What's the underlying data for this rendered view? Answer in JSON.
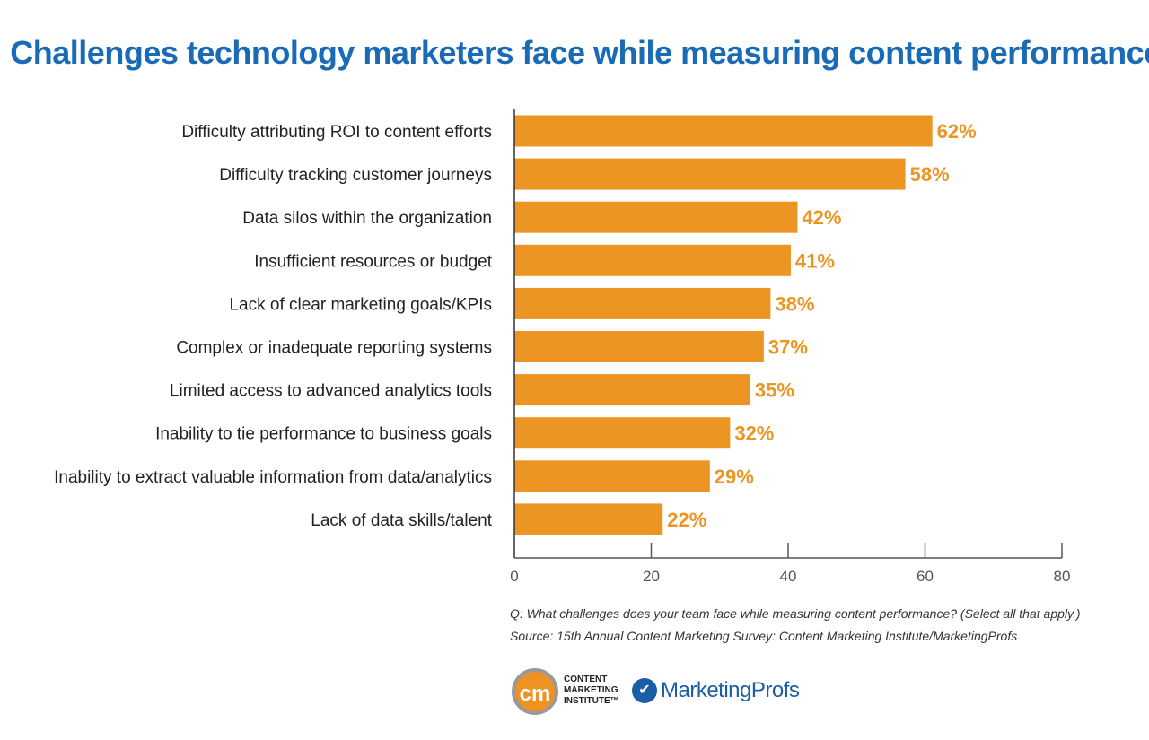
{
  "chart_data": {
    "type": "bar",
    "orientation": "horizontal",
    "title": "Challenges technology marketers face while measuring content performance",
    "categories": [
      "Difficulty attributing ROI to content efforts",
      "Difficulty tracking customer journeys",
      "Data silos within the organization",
      "Insufficient resources or budget",
      "Lack of clear marketing goals/KPIs",
      "Complex or inadequate reporting systems",
      "Limited access to advanced analytics tools",
      "Inability to tie performance to business goals",
      "Inability to extract valuable information from data/analytics",
      "Lack of data skills/talent"
    ],
    "values": [
      62,
      58,
      42,
      41,
      38,
      37,
      35,
      32,
      29,
      22
    ],
    "value_labels": [
      "62%",
      "58%",
      "42%",
      "41%",
      "38%",
      "37%",
      "35%",
      "32%",
      "29%",
      "22%"
    ],
    "xlim": [
      0,
      80
    ],
    "xticks": [
      "0",
      "20",
      "40",
      "60",
      "80"
    ],
    "bar_color": "#ec9523",
    "title_color": "#1a6bb5"
  },
  "footer": {
    "question": "Q: What challenges does your team face while measuring content performance? (Select all that apply.)",
    "source": "Source: 15th Annual Content Marketing Survey: Content Marketing Institute/MarketingProfs"
  },
  "logos": {
    "cmi_mark": "cm",
    "cmi_line1": "CONTENT",
    "cmi_line2": "MARKETING",
    "cmi_line3": "INSTITUTE™",
    "mp_name": "MarketingProfs"
  }
}
